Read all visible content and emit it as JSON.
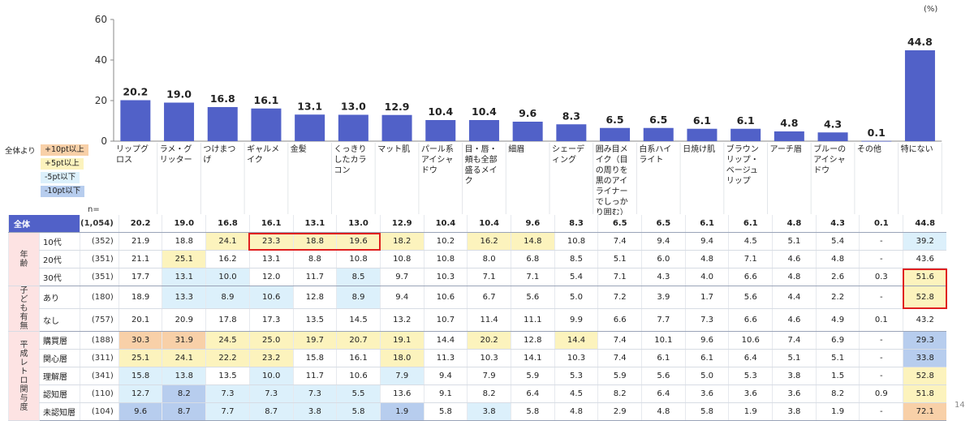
{
  "unit_label": "(%)",
  "page_number": "14",
  "n_label": "n=",
  "legend": {
    "lead": "全体より",
    "items": [
      {
        "label": "+10pt以上",
        "color": "#f8d0a8"
      },
      {
        "label": "+5pt以上",
        "color": "#fcf3bd"
      },
      {
        "label": "-5pt以下",
        "color": "#dcf0fb"
      },
      {
        "label": "-10pt以下",
        "color": "#b7cdee"
      }
    ]
  },
  "colors": {
    "bar": "#5161c8",
    "total_label_bg": "#5161c8",
    "group_bg": "#fde3e3",
    "highlight_border": "#e02020"
  },
  "chart_data": {
    "type": "bar",
    "categories": [
      "リップグロス",
      "ラメ・グリッター",
      "つけまつげ",
      "ギャルメイク",
      "金髪",
      "くっきりしたカラコン",
      "マット肌",
      "パール系アイシャドウ",
      "目・唇・頬も全部盛るメイク",
      "細眉",
      "シェーディング",
      "囲み目メイク（目の周りを黒のアイライナーでしっかり囲む）",
      "白系ハイライト",
      "日焼け肌",
      "ブラウンリップ・ベージュリップ",
      "アーチ眉",
      "ブルーのアイシャドウ",
      "その他",
      "特にない"
    ],
    "values": [
      20.2,
      19.0,
      16.8,
      16.1,
      13.1,
      13.0,
      12.9,
      10.4,
      10.4,
      9.6,
      8.3,
      6.5,
      6.5,
      6.1,
      6.1,
      4.8,
      4.3,
      0.1,
      44.8
    ],
    "value_labels": [
      "20.2",
      "19.0",
      "16.8",
      "16.1",
      "13.1",
      "13.0",
      "12.9",
      "10.4",
      "10.4",
      "9.6",
      "8.3",
      "6.5",
      "6.5",
      "6.1",
      "6.1",
      "4.8",
      "4.3",
      "0.1",
      "44.8"
    ],
    "yticks": [
      "0",
      "20",
      "40",
      "60"
    ],
    "ylim": [
      0,
      60
    ],
    "grid": false
  },
  "table": {
    "total": {
      "label": "全体",
      "n": "(1,054)",
      "values": [
        "20.2",
        "19.0",
        "16.8",
        "16.1",
        "13.1",
        "13.0",
        "12.9",
        "10.4",
        "10.4",
        "9.6",
        "8.3",
        "6.5",
        "6.5",
        "6.1",
        "6.1",
        "4.8",
        "4.3",
        "0.1",
        "44.8"
      ]
    },
    "groups": [
      {
        "label": "年齢",
        "rows": [
          {
            "label": "10代",
            "n": "(352)",
            "values": [
              "21.9",
              "18.8",
              "24.1",
              "23.3",
              "18.8",
              "19.6",
              "18.2",
              "10.2",
              "16.2",
              "14.8",
              "10.8",
              "7.4",
              "9.4",
              "9.4",
              "4.5",
              "5.1",
              "5.4",
              "-",
              "39.2"
            ],
            "shades": [
              0,
              0,
              2,
              2,
              2,
              2,
              2,
              0,
              2,
              2,
              0,
              0,
              0,
              0,
              0,
              0,
              0,
              0,
              3
            ]
          },
          {
            "label": "20代",
            "n": "(351)",
            "values": [
              "21.1",
              "25.1",
              "16.2",
              "13.1",
              "8.8",
              "10.8",
              "10.8",
              "10.8",
              "8.0",
              "6.8",
              "8.5",
              "5.1",
              "6.0",
              "4.8",
              "7.1",
              "4.6",
              "4.8",
              "-",
              "43.6"
            ],
            "shades": [
              0,
              2,
              0,
              0,
              0,
              0,
              0,
              0,
              0,
              0,
              0,
              0,
              0,
              0,
              0,
              0,
              0,
              0,
              0
            ]
          },
          {
            "label": "30代",
            "n": "(351)",
            "values": [
              "17.7",
              "13.1",
              "10.0",
              "12.0",
              "11.7",
              "8.5",
              "9.7",
              "10.3",
              "7.1",
              "7.1",
              "5.4",
              "7.1",
              "4.3",
              "4.0",
              "6.6",
              "4.8",
              "2.6",
              "0.3",
              "51.6"
            ],
            "shades": [
              0,
              3,
              3,
              0,
              0,
              3,
              0,
              0,
              0,
              0,
              0,
              0,
              0,
              0,
              0,
              0,
              0,
              0,
              2
            ]
          }
        ]
      },
      {
        "label": "子ども有無",
        "rows": [
          {
            "label": "あり",
            "n": "(180)",
            "values": [
              "18.9",
              "13.3",
              "8.9",
              "10.6",
              "12.8",
              "8.9",
              "9.4",
              "10.6",
              "6.7",
              "5.6",
              "5.0",
              "7.2",
              "3.9",
              "1.7",
              "5.6",
              "4.4",
              "2.2",
              "-",
              "52.8"
            ],
            "shades": [
              0,
              3,
              3,
              3,
              0,
              3,
              0,
              0,
              0,
              0,
              0,
              0,
              0,
              0,
              0,
              0,
              0,
              0,
              2
            ]
          },
          {
            "label": "なし",
            "n": "(757)",
            "values": [
              "20.1",
              "20.9",
              "17.8",
              "17.3",
              "13.5",
              "14.5",
              "13.2",
              "10.7",
              "11.4",
              "11.1",
              "9.9",
              "6.6",
              "7.7",
              "7.3",
              "6.6",
              "4.6",
              "4.9",
              "0.1",
              "43.2"
            ],
            "shades": [
              0,
              0,
              0,
              0,
              0,
              0,
              0,
              0,
              0,
              0,
              0,
              0,
              0,
              0,
              0,
              0,
              0,
              0,
              0
            ]
          }
        ]
      },
      {
        "label": "平成レトロ関与度",
        "rows": [
          {
            "label": "購買層",
            "n": "(188)",
            "values": [
              "30.3",
              "31.9",
              "24.5",
              "25.0",
              "19.7",
              "20.7",
              "19.1",
              "14.4",
              "20.2",
              "12.8",
              "14.4",
              "7.4",
              "10.1",
              "9.6",
              "10.6",
              "7.4",
              "6.9",
              "-",
              "29.3"
            ],
            "shades": [
              1,
              1,
              2,
              2,
              2,
              2,
              2,
              0,
              2,
              0,
              2,
              0,
              0,
              0,
              0,
              0,
              0,
              0,
              4
            ]
          },
          {
            "label": "関心層",
            "n": "(311)",
            "values": [
              "25.1",
              "24.1",
              "22.2",
              "23.2",
              "15.8",
              "16.1",
              "18.0",
              "11.3",
              "10.3",
              "14.1",
              "10.3",
              "7.4",
              "6.1",
              "6.1",
              "6.4",
              "5.1",
              "5.1",
              "-",
              "33.8"
            ],
            "shades": [
              2,
              2,
              2,
              2,
              0,
              0,
              2,
              0,
              0,
              0,
              0,
              0,
              0,
              0,
              0,
              0,
              0,
              0,
              4
            ]
          },
          {
            "label": "理解層",
            "n": "(341)",
            "values": [
              "15.8",
              "13.8",
              "13.5",
              "10.0",
              "11.7",
              "10.6",
              "7.9",
              "9.4",
              "7.9",
              "5.9",
              "5.3",
              "5.9",
              "5.6",
              "5.0",
              "5.3",
              "3.8",
              "1.5",
              "-",
              "52.8"
            ],
            "shades": [
              3,
              3,
              0,
              3,
              0,
              0,
              3,
              0,
              0,
              0,
              0,
              0,
              0,
              0,
              0,
              0,
              0,
              0,
              2
            ]
          },
          {
            "label": "認知層",
            "n": "(110)",
            "values": [
              "12.7",
              "8.2",
              "7.3",
              "7.3",
              "7.3",
              "5.5",
              "13.6",
              "9.1",
              "8.2",
              "6.4",
              "4.5",
              "8.2",
              "6.4",
              "3.6",
              "3.6",
              "3.6",
              "8.2",
              "0.9",
              "51.8"
            ],
            "shades": [
              3,
              4,
              3,
              3,
              3,
              3,
              0,
              0,
              0,
              0,
              0,
              0,
              0,
              0,
              0,
              0,
              0,
              0,
              2
            ]
          },
          {
            "label": "未認知層",
            "n": "(104)",
            "values": [
              "9.6",
              "8.7",
              "7.7",
              "8.7",
              "3.8",
              "5.8",
              "1.9",
              "5.8",
              "3.8",
              "5.8",
              "4.8",
              "2.9",
              "4.8",
              "5.8",
              "1.9",
              "3.8",
              "1.9",
              "-",
              "72.1"
            ],
            "shades": [
              4,
              4,
              3,
              3,
              3,
              3,
              4,
              0,
              3,
              0,
              0,
              0,
              0,
              0,
              0,
              0,
              0,
              0,
              1
            ]
          }
        ]
      }
    ]
  }
}
